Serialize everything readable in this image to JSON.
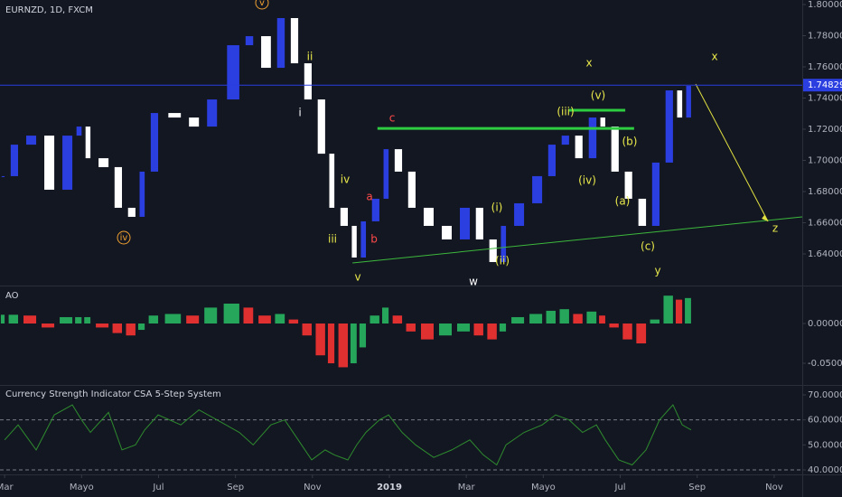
{
  "header": {
    "symbol": "EURNZD, 1D, FXCM"
  },
  "chart_data": [
    {
      "type": "candlestick",
      "x": [
        0,
        0.35,
        0.82,
        1.29,
        1.76,
        2.0,
        2.23,
        2.7,
        3.05,
        3.4,
        3.64,
        3.99,
        4.58,
        5.05,
        5.52,
        6.1,
        6.46,
        6.92,
        7.28,
        7.63,
        7.98,
        8.33,
        8.57,
        8.92,
        9.15,
        9.39,
        9.74,
        9.98,
        10.33,
        10.68,
        11.15,
        11.62,
        12.09,
        12.44,
        12.79,
        13.03,
        13.5,
        13.97,
        14.32,
        14.67,
        15.02,
        15.38,
        15.61,
        15.96,
        16.31,
        16.67,
        17.02,
        17.37,
        17.61,
        17.84
      ],
      "close": [
        1.6899,
        1.7101,
        1.7159,
        1.6812,
        1.7159,
        1.7217,
        1.7014,
        1.6957,
        1.6696,
        1.6638,
        1.6928,
        1.7304,
        1.7275,
        1.7217,
        1.7391,
        1.7739,
        1.7797,
        1.7594,
        1.7913,
        1.7623,
        1.7391,
        1.7043,
        1.6696,
        1.658,
        1.6377,
        1.6609,
        1.6754,
        1.7072,
        1.6928,
        1.6696,
        1.658,
        1.6493,
        1.6696,
        1.6493,
        1.6348,
        1.658,
        1.6725,
        1.6899,
        1.7101,
        1.7159,
        1.7014,
        1.7275,
        1.7217,
        1.6928,
        1.6754,
        1.658,
        1.6986,
        1.7449,
        1.7275,
        1.7478
      ],
      "up_color": "#2b3ee0",
      "down_color": "#ffffff",
      "xlim": [
        -0.12,
        20.73
      ],
      "xticks": [
        {
          "value": 0,
          "label": "Mar"
        },
        {
          "value": 2,
          "label": "Mayo"
        },
        {
          "value": 4,
          "label": "Jul"
        },
        {
          "value": 6,
          "label": "Sep"
        },
        {
          "value": 8,
          "label": "Nov"
        },
        {
          "value": 10,
          "label": "2019"
        },
        {
          "value": 12,
          "label": "Mar"
        },
        {
          "value": 14,
          "label": "Mayo"
        },
        {
          "value": 16,
          "label": "Jul"
        },
        {
          "value": 18,
          "label": "Sep"
        },
        {
          "value": 20,
          "label": "Nov"
        }
      ],
      "ylim": [
        1.6203,
        1.8029
      ],
      "yticks": [
        {
          "value": 1.8,
          "label": "1.80000"
        },
        {
          "value": 1.78,
          "label": "1.78000"
        },
        {
          "value": 1.76,
          "label": "1.76000"
        },
        {
          "value": 1.74,
          "label": "1.74000"
        },
        {
          "value": 1.72,
          "label": "1.72000"
        },
        {
          "value": 1.7,
          "label": "1.70000"
        },
        {
          "value": 1.68,
          "label": "1.68000"
        },
        {
          "value": 1.66,
          "label": "1.66000"
        },
        {
          "value": 1.64,
          "label": "1.64000"
        }
      ],
      "last_price": {
        "value": 1.74829,
        "label": "1.74829",
        "color": "#2b3ee0"
      },
      "lines": [
        {
          "x": [
            9.69,
            16.36
          ],
          "y": [
            1.7205,
            1.7205
          ],
          "color": "#2ecc40"
        },
        {
          "x": [
            14.67,
            16.13
          ],
          "y": [
            1.7322,
            1.7322
          ],
          "color": "#2ecc40"
        },
        {
          "x": [
            9.04,
            20.73
          ],
          "y": [
            1.6342,
            1.6638
          ],
          "color": "#3cb83c"
        },
        {
          "x": [
            17.96,
            19.84
          ],
          "y": [
            1.749,
            1.6609
          ],
          "color": "#e0e040"
        }
      ],
      "annotations": [
        {
          "text": "v",
          "color": "#f0a030",
          "circled": true
        },
        {
          "text": "ii",
          "color": "#e8e84a"
        },
        {
          "text": "i",
          "color": "#ffffff"
        },
        {
          "text": "iv",
          "color": "#e8e84a"
        },
        {
          "text": "a",
          "color": "#ff4a4a"
        },
        {
          "text": "iii",
          "color": "#e8e84a"
        },
        {
          "text": "b",
          "color": "#ff4a4a"
        },
        {
          "text": "v",
          "color": "#e8e84a"
        },
        {
          "text": "c",
          "color": "#ff4a4a"
        },
        {
          "text": "w",
          "color": "#ffffff"
        },
        {
          "text": "(i)",
          "color": "#e8e84a"
        },
        {
          "text": "(ii)",
          "color": "#e8e84a"
        },
        {
          "text": "(iii)",
          "color": "#e8e84a"
        },
        {
          "text": "(iv)",
          "color": "#e8e84a"
        },
        {
          "text": "(v)",
          "color": "#e8e84a"
        },
        {
          "text": "x",
          "color": "#e8e84a"
        },
        {
          "text": "(b)",
          "color": "#e8e84a"
        },
        {
          "text": "(a)",
          "color": "#e8e84a"
        },
        {
          "text": "(c)",
          "color": "#e8e84a"
        },
        {
          "text": "y",
          "color": "#e8e84a"
        },
        {
          "text": "x",
          "color": "#e8e84a"
        },
        {
          "text": "z",
          "color": "#e8e84a"
        },
        {
          "text": "iv",
          "color": "#f0a030",
          "circled": true
        }
      ]
    },
    {
      "type": "bar",
      "title": "AO",
      "x": [
        0,
        0.35,
        0.82,
        1.29,
        1.76,
        2.0,
        2.23,
        2.7,
        3.05,
        3.4,
        3.64,
        3.99,
        4.58,
        5.05,
        5.52,
        6.1,
        6.46,
        6.92,
        7.28,
        7.63,
        7.98,
        8.33,
        8.57,
        8.92,
        9.15,
        9.39,
        9.74,
        9.98,
        10.33,
        10.68,
        11.15,
        11.62,
        12.09,
        12.44,
        12.79,
        13.03,
        13.5,
        13.97,
        14.32,
        14.67,
        15.02,
        15.38,
        15.61,
        15.96,
        16.31,
        16.67,
        17.02,
        17.37,
        17.61,
        17.84
      ],
      "values": [
        0.011,
        0.011,
        0.01,
        -0.005,
        0.008,
        0.008,
        0.008,
        -0.005,
        -0.012,
        -0.015,
        -0.008,
        0.01,
        0.012,
        0.01,
        0.02,
        0.025,
        0.02,
        0.01,
        0.012,
        0.005,
        -0.015,
        -0.04,
        -0.05,
        -0.055,
        -0.05,
        -0.03,
        0.01,
        0.02,
        0.01,
        -0.01,
        -0.02,
        -0.015,
        -0.01,
        -0.015,
        -0.02,
        -0.01,
        0.008,
        0.012,
        0.016,
        0.018,
        0.012,
        0.015,
        0.01,
        -0.005,
        -0.02,
        -0.025,
        0.005,
        0.035,
        0.03,
        0.032
      ],
      "up_color": "#26a65b",
      "down_color": "#e03030",
      "ylim": [
        -0.0761,
        0.04545
      ],
      "yticks": [
        {
          "value": 0,
          "label": "0.00000"
        },
        {
          "value": -0.05,
          "label": "-0.05000"
        }
      ]
    },
    {
      "type": "line",
      "title": "Currency Strength Indicator CSA 5-Step System",
      "x": [
        0,
        0.35,
        0.82,
        1.29,
        1.76,
        2.0,
        2.23,
        2.7,
        3.05,
        3.4,
        3.64,
        3.99,
        4.58,
        5.05,
        5.52,
        6.1,
        6.46,
        6.92,
        7.28,
        7.63,
        7.98,
        8.33,
        8.57,
        8.92,
        9.15,
        9.39,
        9.74,
        9.98,
        10.33,
        10.68,
        11.15,
        11.62,
        12.09,
        12.44,
        12.79,
        13.03,
        13.5,
        13.97,
        14.32,
        14.67,
        15.02,
        15.38,
        15.61,
        15.96,
        16.31,
        16.67,
        17.02,
        17.37,
        17.61,
        17.84
      ],
      "values": [
        52,
        58,
        48,
        62,
        66,
        60,
        55,
        63,
        48,
        50,
        56,
        62,
        58,
        64,
        60,
        55,
        50,
        58,
        60,
        52,
        44,
        48,
        46,
        44,
        50,
        55,
        60,
        62,
        55,
        50,
        45,
        48,
        52,
        46,
        42,
        50,
        55,
        58,
        62,
        60,
        55,
        58,
        52,
        44,
        42,
        48,
        60,
        66,
        58,
        56
      ],
      "color": "#2e8b2e",
      "ylim": [
        38.2,
        73.25
      ],
      "yticks": [
        {
          "value": 70,
          "label": "70.00000"
        },
        {
          "value": 60,
          "label": "60.00000"
        },
        {
          "value": 50,
          "label": "50.00000"
        },
        {
          "value": 40,
          "label": "40.00000"
        }
      ],
      "levels": [
        60,
        40
      ]
    }
  ]
}
